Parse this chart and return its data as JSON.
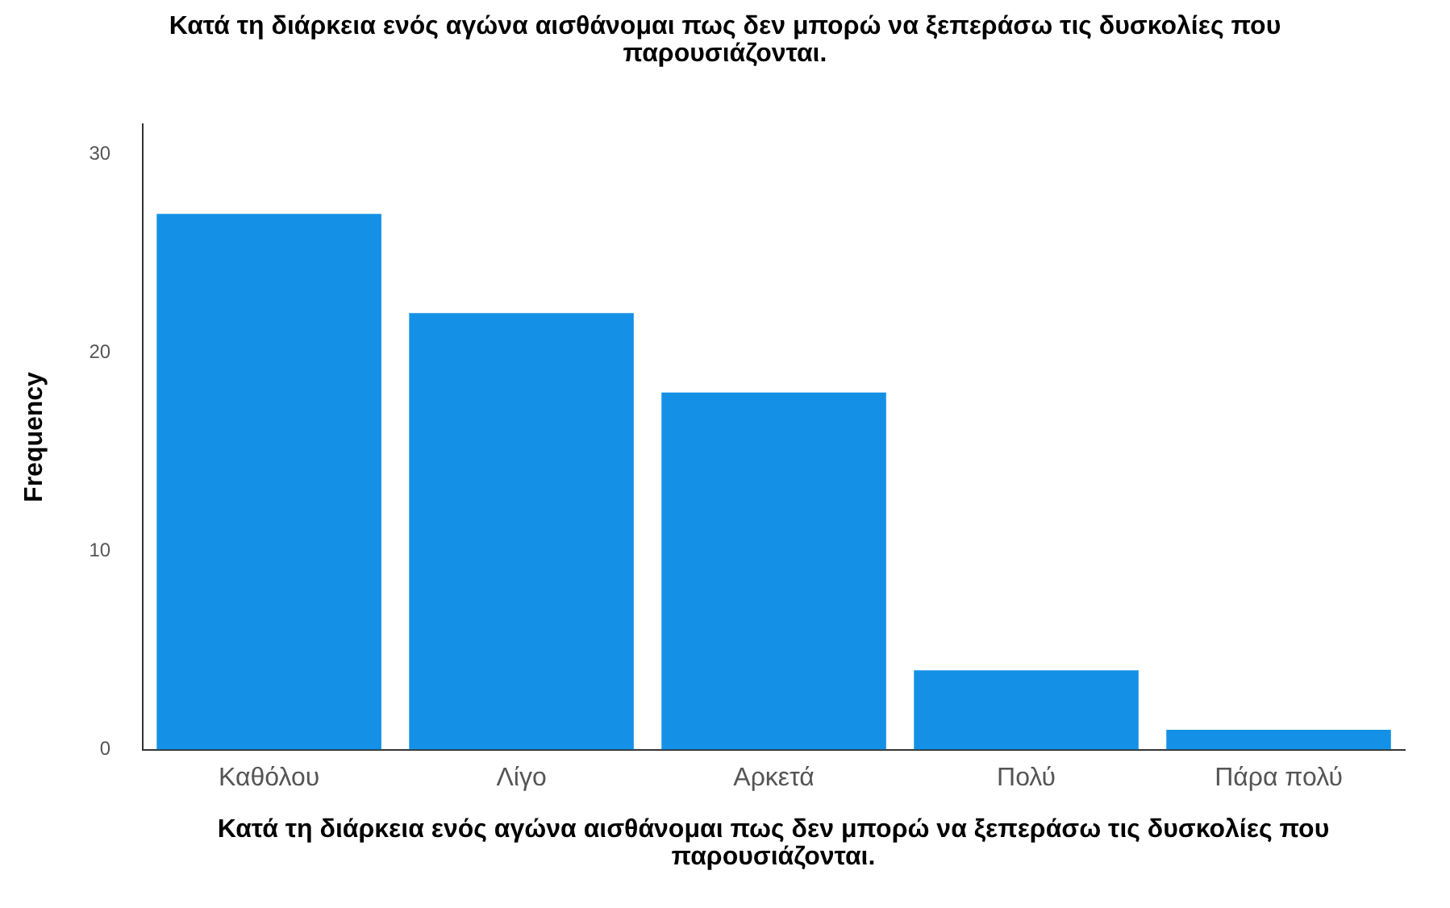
{
  "chart_data": {
    "type": "bar",
    "title": "Κατά τη διάρκεια ενός αγώνα αισθάνομαι πως δεν μπορώ να ξεπεράσω τις δυσκολίες που παρουσιάζονται.",
    "xlabel": "Κατά τη διάρκεια ενός αγώνα αισθάνομαι πως δεν μπορώ να ξεπεράσω τις δυσκολίες που παρουσιάζονται.",
    "ylabel": "Frequency",
    "categories": [
      "Καθόλου",
      "Λίγο",
      "Αρκετά",
      "Πολύ",
      "Πάρα πολύ"
    ],
    "values": [
      27,
      22,
      18,
      4,
      1
    ],
    "color": "#1491e6",
    "ylim": [
      0,
      31.5
    ],
    "yticks": [
      0,
      10,
      20,
      30
    ],
    "grid": false,
    "legend": false
  }
}
